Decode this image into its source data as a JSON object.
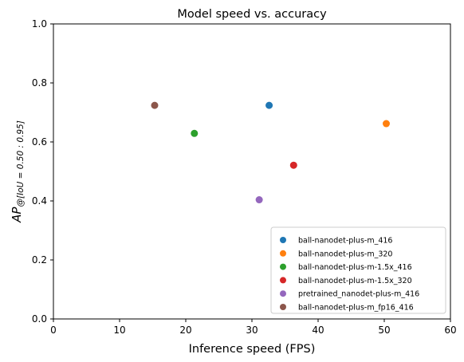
{
  "chart_data": {
    "type": "scatter",
    "title": "Model speed vs. accuracy",
    "xlabel": "Inference speed (FPS)",
    "ylabel_main": "AP",
    "ylabel_sub": "@[IoU = 0.50 : 0.95]",
    "xlim": [
      0,
      60
    ],
    "ylim": [
      0,
      1
    ],
    "x_ticks": [
      0,
      10,
      20,
      30,
      40,
      50,
      60
    ],
    "x_tick_labels": [
      "0",
      "10",
      "20",
      "30",
      "40",
      "50",
      "60"
    ],
    "y_ticks": [
      0,
      0.2,
      0.4,
      0.6,
      0.8,
      1
    ],
    "y_tick_labels": [
      "0.0",
      "0.2",
      "0.4",
      "0.6",
      "0.8",
      "1.0"
    ],
    "grid": false,
    "legend_position": "bottom-right",
    "series": [
      {
        "name": "ball-nanodet-plus-m_416",
        "color": "#1f77b4",
        "x": [
          32.6
        ],
        "y": [
          0.724
        ]
      },
      {
        "name": "ball-nanodet-plus-m_320",
        "color": "#ff7f0e",
        "x": [
          50.3
        ],
        "y": [
          0.662
        ]
      },
      {
        "name": "ball-nanodet-plus-m-1.5x_416",
        "color": "#2ca02c",
        "x": [
          21.3
        ],
        "y": [
          0.629
        ]
      },
      {
        "name": "ball-nanodet-plus-m-1.5x_320",
        "color": "#d62728",
        "x": [
          36.3
        ],
        "y": [
          0.521
        ]
      },
      {
        "name": "pretrained_nanodet-plus-m_416",
        "color": "#9467bd",
        "x": [
          31.1
        ],
        "y": [
          0.404
        ]
      },
      {
        "name": "ball-nanodet-plus-m_fp16_416",
        "color": "#8c564b",
        "x": [
          15.3
        ],
        "y": [
          0.724
        ]
      }
    ]
  }
}
